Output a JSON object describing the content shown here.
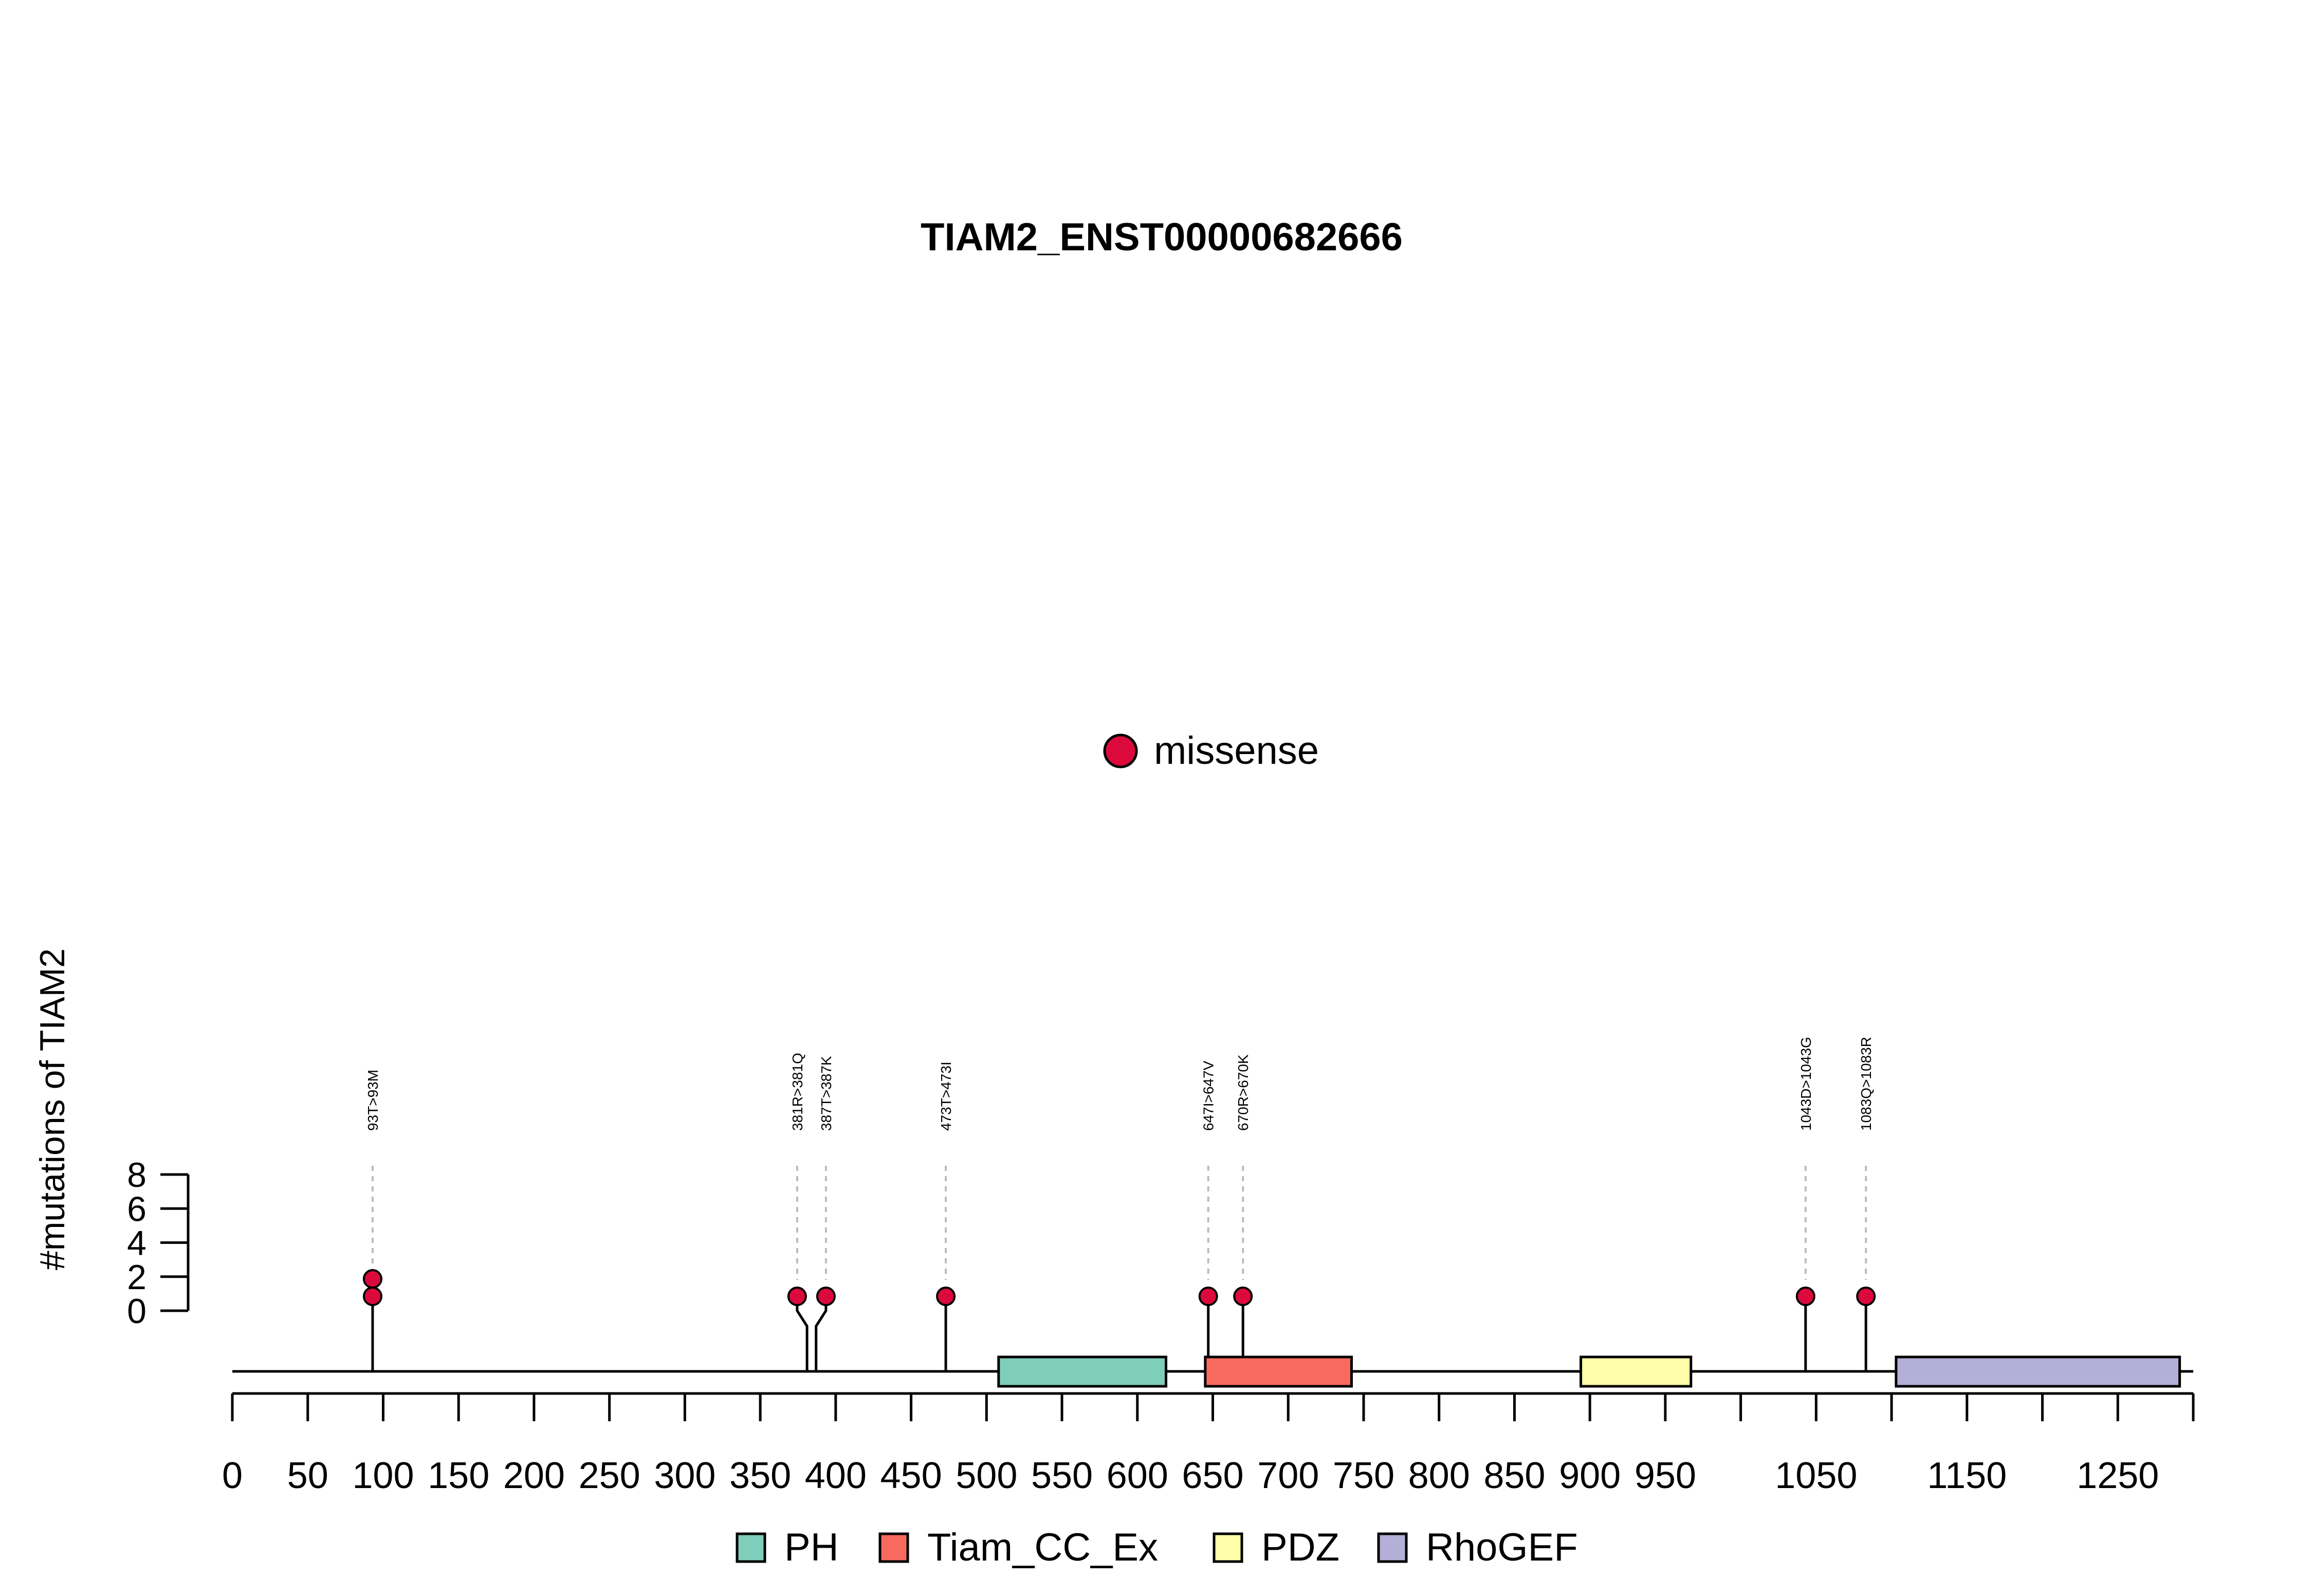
{
  "title": "TIAM2_ENST00000682666",
  "colors": {
    "missense": "#DC0A3C",
    "PH": "#7FCDBB",
    "Tiam_CC_Ex": "#F8695E",
    "PDZ": "#FFFFAA",
    "RhoGEF": "#B3AFD6",
    "axis": "#000000",
    "guide": "#BBBBBB"
  },
  "chart_data": {
    "type": "lollipop",
    "title": "TIAM2_ENST00000682666",
    "ylabel": "#mutations of TIAM2",
    "xlim": [
      0,
      1300
    ],
    "ylim": [
      0,
      8
    ],
    "x_ticks": [
      0,
      50,
      100,
      150,
      200,
      250,
      300,
      350,
      400,
      450,
      500,
      550,
      600,
      650,
      700,
      750,
      800,
      850,
      900,
      950,
      1000,
      1050,
      1100,
      1150,
      1200,
      1250,
      1300
    ],
    "x_tick_labels": [
      "0",
      "50",
      "100",
      "150",
      "200",
      "250",
      "300",
      "350",
      "400",
      "450",
      "500",
      "550",
      "600",
      "650",
      "700",
      "750",
      "800",
      "850",
      "900",
      "950",
      "",
      "1050",
      "",
      "1150",
      "",
      "1250",
      ""
    ],
    "y_ticks": [
      0,
      2,
      4,
      6,
      8
    ],
    "legend_top": [
      {
        "label": "missense",
        "color_key": "missense"
      }
    ],
    "mutations": [
      {
        "pos": 93,
        "count": 2,
        "label": "93T>93M",
        "type": "missense"
      },
      {
        "pos": 381,
        "count": 1,
        "label": "381R>381Q",
        "type": "missense"
      },
      {
        "pos": 387,
        "count": 1,
        "label": "387T>387K",
        "type": "missense"
      },
      {
        "pos": 473,
        "count": 1,
        "label": "473T>473I",
        "type": "missense"
      },
      {
        "pos": 647,
        "count": 1,
        "label": "647I>647V",
        "type": "missense"
      },
      {
        "pos": 670,
        "count": 1,
        "label": "670R>670K",
        "type": "missense"
      },
      {
        "pos": 1043,
        "count": 1,
        "label": "1043D>1043G",
        "type": "missense"
      },
      {
        "pos": 1083,
        "count": 1,
        "label": "1083Q>1083R",
        "type": "missense"
      }
    ],
    "domains": [
      {
        "name": "PH",
        "start": 508,
        "end": 619
      },
      {
        "name": "Tiam_CC_Ex",
        "start": 645,
        "end": 742
      },
      {
        "name": "PDZ",
        "start": 894,
        "end": 967
      },
      {
        "name": "RhoGEF",
        "start": 1103,
        "end": 1291
      }
    ],
    "legend_bottom": [
      "PH",
      "Tiam_CC_Ex",
      "PDZ",
      "RhoGEF"
    ]
  }
}
